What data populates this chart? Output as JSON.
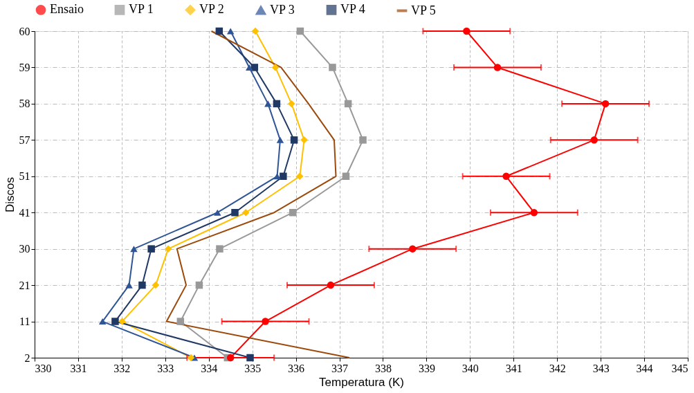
{
  "chart_data": {
    "type": "line",
    "orientation": "horizontal",
    "xlabel": "Temperatura (K)",
    "ylabel": "Discos",
    "categories": [
      "60",
      "59",
      "58",
      "57",
      "51",
      "41",
      "30",
      "21",
      "11",
      "2"
    ],
    "xlim": [
      330,
      345
    ],
    "xticks": [
      330,
      331,
      332,
      333,
      334,
      335,
      336,
      337,
      338,
      339,
      340,
      341,
      342,
      343,
      344,
      345
    ],
    "grid": true,
    "legend": "top",
    "series": [
      {
        "name": "Ensaio",
        "color": "#ff0000",
        "marker": "circle",
        "values": [
          339.92,
          340.63,
          343.11,
          342.85,
          340.83,
          341.47,
          338.68,
          336.8,
          335.3,
          334.5
        ],
        "errors": [
          1,
          1,
          1,
          1,
          1,
          1,
          1,
          1,
          1,
          1
        ]
      },
      {
        "name": "VP 1",
        "color": "#999999",
        "marker": "square",
        "values": [
          336.1,
          336.84,
          337.2,
          337.54,
          337.15,
          335.93,
          334.25,
          333.78,
          333.35,
          334.43
        ]
      },
      {
        "name": "VP 2",
        "color": "#ffc000",
        "marker": "diamond",
        "values": [
          335.07,
          335.53,
          335.9,
          336.19,
          336.09,
          334.85,
          333.07,
          332.78,
          332.01,
          333.59
        ]
      },
      {
        "name": "VP 3",
        "color": "#2f5597",
        "marker": "triangle",
        "values": [
          334.5,
          334.93,
          335.36,
          335.64,
          335.57,
          334.2,
          332.28,
          332.17,
          331.56,
          333.67
        ]
      },
      {
        "name": "VP 4",
        "color": "#203864",
        "marker": "square",
        "values": [
          334.24,
          335.05,
          335.56,
          335.96,
          335.71,
          334.6,
          332.68,
          332.47,
          331.85,
          334.95
        ]
      },
      {
        "name": "VP 5",
        "color": "#9c4a0c",
        "marker": "none",
        "values": [
          334.06,
          335.66,
          336.29,
          336.88,
          336.92,
          335.5,
          333.27,
          333.48,
          333.03,
          337.23
        ]
      }
    ]
  }
}
